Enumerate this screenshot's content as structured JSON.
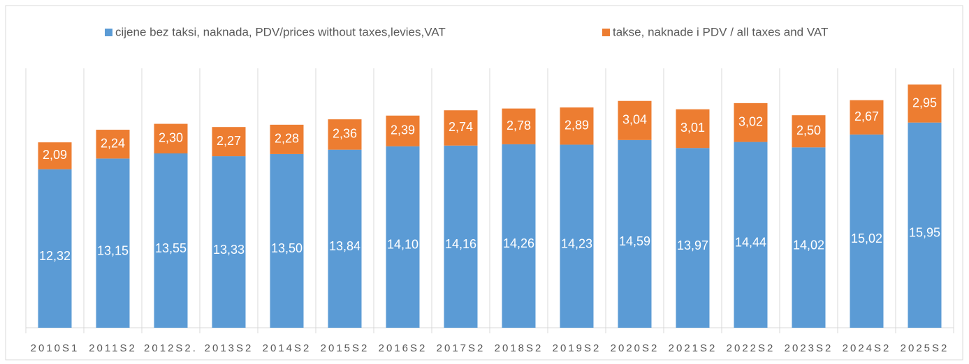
{
  "chart_data": {
    "type": "stacked_bar",
    "categories": [
      "2010S1",
      "2011S2",
      "2012S2.",
      "2013S2",
      "2014S2",
      "2015S2",
      "2016S2",
      "2017S2",
      "2018S2",
      "2019S2",
      "2020S2",
      "2021S2",
      "2022S2",
      "2023S2",
      "2024S2",
      "2025S2"
    ],
    "series": [
      {
        "name": "cijene bez taksi, naknada, PDV/prices without taxes,levies,VAT",
        "color": "#5b9bd5",
        "values": [
          12.32,
          13.15,
          13.55,
          13.33,
          13.5,
          13.84,
          14.1,
          14.16,
          14.26,
          14.23,
          14.59,
          13.97,
          14.44,
          14.02,
          15.02,
          15.95
        ],
        "value_labels": [
          "12,32",
          "13,15",
          "13,55",
          "13,33",
          "13,50",
          "13,84",
          "14,10",
          "14,16",
          "14,26",
          "14,23",
          "14,59",
          "13,97",
          "14,44",
          "14,02",
          "15,02",
          "15,95"
        ]
      },
      {
        "name": "takse, naknade i PDV / all taxes and VAT",
        "color": "#ed7d31",
        "values": [
          2.09,
          2.24,
          2.3,
          2.27,
          2.28,
          2.36,
          2.39,
          2.74,
          2.78,
          2.89,
          3.04,
          3.01,
          3.02,
          2.5,
          2.67,
          2.95
        ],
        "value_labels": [
          "2,09",
          "2,24",
          "2,30",
          "2,27",
          "2,28",
          "2,36",
          "2,39",
          "2,74",
          "2,78",
          "2,89",
          "3,04",
          "3,01",
          "3,02",
          "2,50",
          "2,67",
          "2,95"
        ]
      }
    ],
    "ylim": [
      0,
      20
    ],
    "legend": "top"
  }
}
